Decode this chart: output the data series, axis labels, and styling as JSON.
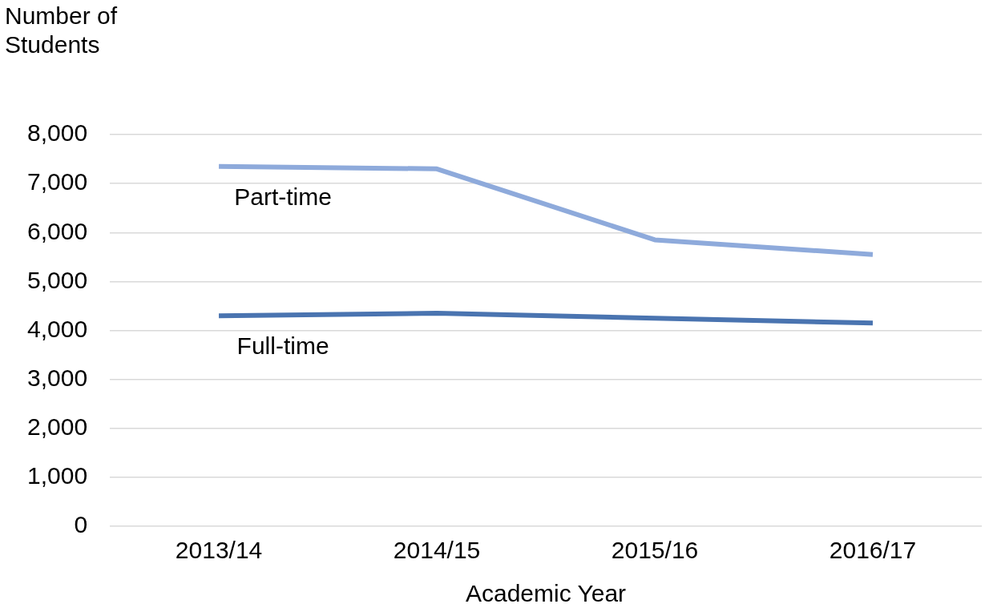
{
  "chart_data": {
    "type": "line",
    "ylabel": "Number of Students",
    "xlabel": "Academic Year",
    "categories": [
      "2013/14",
      "2014/15",
      "2015/16",
      "2016/17"
    ],
    "series": [
      {
        "name": "Part-time",
        "color": "#8eaadb",
        "values": [
          7350,
          7300,
          5850,
          5550
        ]
      },
      {
        "name": "Full-time",
        "color": "#4a74b0",
        "values": [
          4300,
          4350,
          4250,
          4150
        ]
      }
    ],
    "ylim": [
      0,
      8000
    ],
    "yticks": [
      0,
      {
        "value": 1000,
        "label": "1,000"
      },
      {
        "value": 2000,
        "label": "2,000"
      },
      {
        "value": 3000,
        "label": "3,000"
      },
      {
        "value": 4000,
        "label": "4,000"
      },
      {
        "value": 5000,
        "label": "5,000"
      },
      {
        "value": 6000,
        "label": "6,000"
      },
      {
        "value": 7000,
        "label": "7,000"
      },
      {
        "value": 8000,
        "label": "8,000"
      }
    ],
    "grid": "y",
    "legend": false,
    "marker": "none",
    "line_style": "solid"
  }
}
